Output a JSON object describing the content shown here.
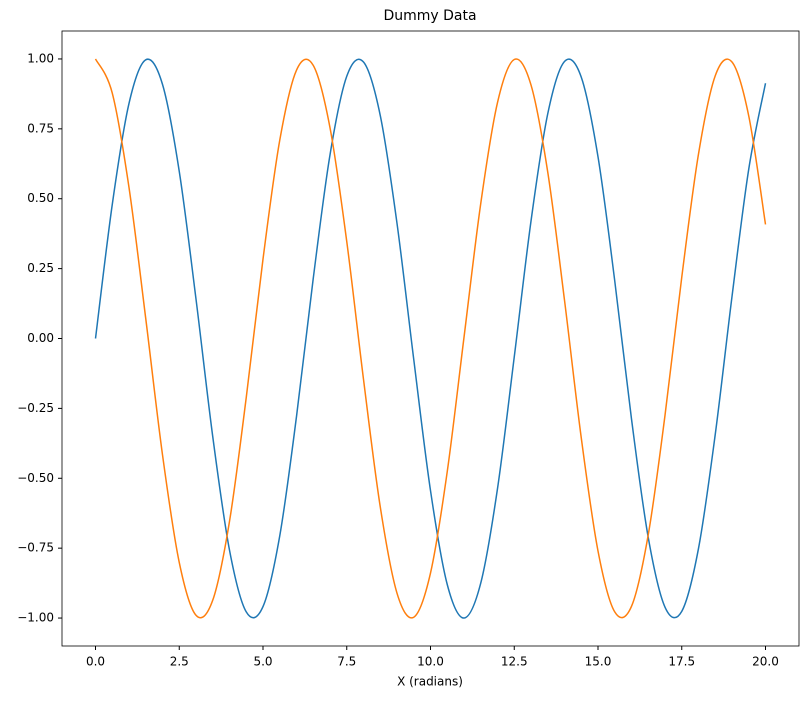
{
  "chart_data": {
    "type": "line",
    "title": "Dummy Data",
    "x_label": "X (radians)",
    "x": [
      0,
      0.5,
      1,
      1.5,
      2,
      2.5,
      3,
      3.5,
      4,
      4.5,
      5,
      5.5,
      6,
      6.5,
      7,
      7.5,
      8,
      8.5,
      9,
      9.5,
      10,
      10.5,
      11,
      11.5,
      12,
      12.5,
      13,
      13.5,
      14,
      14.5,
      15,
      15.5,
      16,
      16.5,
      17,
      17.5,
      18,
      18.5,
      19,
      19.5,
      20
    ],
    "series": [
      {
        "color": "#1f77b4",
        "values": [
          0,
          0.479,
          0.841,
          0.997,
          0.909,
          0.598,
          0.141,
          -0.351,
          -0.757,
          -0.978,
          -0.959,
          -0.706,
          -0.279,
          0.215,
          0.657,
          0.938,
          0.989,
          0.798,
          0.412,
          -0.075,
          -0.544,
          -0.88,
          -1.0,
          -0.875,
          -0.537,
          -0.066,
          0.42,
          0.804,
          0.991,
          0.935,
          0.65,
          0.206,
          -0.288,
          -0.712,
          -0.961,
          -0.976,
          -0.751,
          -0.343,
          0.15,
          0.606,
          0.913
        ]
      },
      {
        "color": "#ff7f0e",
        "values": [
          1,
          0.878,
          0.54,
          0.071,
          -0.416,
          -0.801,
          -0.99,
          -0.936,
          -0.654,
          -0.211,
          0.284,
          0.709,
          0.96,
          0.977,
          0.754,
          0.347,
          -0.146,
          -0.602,
          -0.911,
          -0.997,
          -0.839,
          -0.476,
          0.004,
          0.483,
          0.844,
          0.998,
          0.907,
          0.595,
          0.137,
          -0.355,
          -0.76,
          -0.978,
          -0.958,
          -0.702,
          -0.275,
          0.219,
          0.66,
          0.94,
          0.989,
          0.796,
          0.408
        ]
      }
    ],
    "xlim": [
      -1,
      21
    ],
    "ylim": [
      -1.1,
      1.1
    ],
    "xticks": [
      {
        "value": 0,
        "label": "0.0"
      },
      2.5,
      {
        "value": 5,
        "label": "5.0"
      },
      7.5,
      {
        "value": 10,
        "label": "10.0"
      },
      12.5,
      {
        "value": 15,
        "label": "15.0"
      },
      17.5,
      {
        "value": 20,
        "label": "20.0"
      }
    ],
    "yticks": [
      {
        "value": -1,
        "label": "−1.00"
      },
      {
        "value": -0.75,
        "label": "−0.75"
      },
      {
        "value": -0.5,
        "label": "−0.50"
      },
      {
        "value": -0.25,
        "label": "−0.25"
      },
      {
        "value": 0,
        "label": "0.00"
      },
      {
        "value": 0.25,
        "label": "0.25"
      },
      {
        "value": 0.5,
        "label": "0.50"
      },
      {
        "value": 0.75,
        "label": "0.75"
      },
      {
        "value": 1,
        "label": "1.00"
      }
    ]
  }
}
